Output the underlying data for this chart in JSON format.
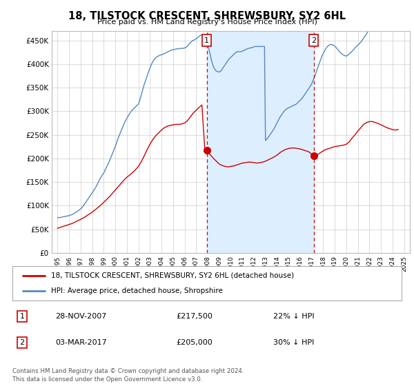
{
  "title": "18, TILSTOCK CRESCENT, SHREWSBURY, SY2 6HL",
  "subtitle": "Price paid vs. HM Land Registry's House Price Index (HPI)",
  "hpi_label": "HPI: Average price, detached house, Shropshire",
  "property_label": "18, TILSTOCK CRESCENT, SHREWSBURY, SY2 6HL (detached house)",
  "footer1": "Contains HM Land Registry data © Crown copyright and database right 2024.",
  "footer2": "This data is licensed under the Open Government Licence v3.0.",
  "transaction1": {
    "num": "1",
    "date": "28-NOV-2007",
    "price": "£217,500",
    "note": "22% ↓ HPI"
  },
  "transaction2": {
    "num": "2",
    "date": "03-MAR-2017",
    "price": "£205,000",
    "note": "30% ↓ HPI"
  },
  "hpi_color": "#5588bb",
  "hpi_fill_color": "#ddeeff",
  "price_color": "#cc0000",
  "marker1_x": 2007.91,
  "marker1_y": 217500,
  "marker2_x": 2017.17,
  "marker2_y": 205000,
  "ylim": [
    0,
    470000
  ],
  "xlim": [
    1994.5,
    2025.5
  ],
  "yticks": [
    0,
    50000,
    100000,
    150000,
    200000,
    250000,
    300000,
    350000,
    400000,
    450000
  ],
  "ytick_labels": [
    "£0",
    "£50K",
    "£100K",
    "£150K",
    "£200K",
    "£250K",
    "£300K",
    "£350K",
    "£400K",
    "£450K"
  ],
  "xticks": [
    1995,
    1996,
    1997,
    1998,
    1999,
    2000,
    2001,
    2002,
    2003,
    2004,
    2005,
    2006,
    2007,
    2008,
    2009,
    2010,
    2011,
    2012,
    2013,
    2014,
    2015,
    2016,
    2017,
    2018,
    2019,
    2020,
    2021,
    2022,
    2023,
    2024,
    2025
  ],
  "hpi_x": [
    1995.0,
    1995.083,
    1995.167,
    1995.25,
    1995.333,
    1995.417,
    1995.5,
    1995.583,
    1995.667,
    1995.75,
    1995.833,
    1995.917,
    1996.0,
    1996.083,
    1996.167,
    1996.25,
    1996.333,
    1996.417,
    1996.5,
    1996.583,
    1996.667,
    1996.75,
    1996.833,
    1996.917,
    1997.0,
    1997.083,
    1997.167,
    1997.25,
    1997.333,
    1997.417,
    1997.5,
    1997.583,
    1997.667,
    1997.75,
    1997.833,
    1997.917,
    1998.0,
    1998.083,
    1998.167,
    1998.25,
    1998.333,
    1998.417,
    1998.5,
    1998.583,
    1998.667,
    1998.75,
    1998.833,
    1998.917,
    1999.0,
    1999.083,
    1999.167,
    1999.25,
    1999.333,
    1999.417,
    1999.5,
    1999.583,
    1999.667,
    1999.75,
    1999.833,
    1999.917,
    2000.0,
    2000.083,
    2000.167,
    2000.25,
    2000.333,
    2000.417,
    2000.5,
    2000.583,
    2000.667,
    2000.75,
    2000.833,
    2000.917,
    2001.0,
    2001.083,
    2001.167,
    2001.25,
    2001.333,
    2001.417,
    2001.5,
    2001.583,
    2001.667,
    2001.75,
    2001.833,
    2001.917,
    2002.0,
    2002.083,
    2002.167,
    2002.25,
    2002.333,
    2002.417,
    2002.5,
    2002.583,
    2002.667,
    2002.75,
    2002.833,
    2002.917,
    2003.0,
    2003.083,
    2003.167,
    2003.25,
    2003.333,
    2003.417,
    2003.5,
    2003.583,
    2003.667,
    2003.75,
    2003.833,
    2003.917,
    2004.0,
    2004.083,
    2004.167,
    2004.25,
    2004.333,
    2004.417,
    2004.5,
    2004.583,
    2004.667,
    2004.75,
    2004.833,
    2004.917,
    2005.0,
    2005.083,
    2005.167,
    2005.25,
    2005.333,
    2005.417,
    2005.5,
    2005.583,
    2005.667,
    2005.75,
    2005.833,
    2005.917,
    2006.0,
    2006.083,
    2006.167,
    2006.25,
    2006.333,
    2006.417,
    2006.5,
    2006.583,
    2006.667,
    2006.75,
    2006.833,
    2006.917,
    2007.0,
    2007.083,
    2007.167,
    2007.25,
    2007.333,
    2007.417,
    2007.5,
    2007.583,
    2007.667,
    2007.75,
    2007.833,
    2007.917,
    2008.0,
    2008.083,
    2008.167,
    2008.25,
    2008.333,
    2008.417,
    2008.5,
    2008.583,
    2008.667,
    2008.75,
    2008.833,
    2008.917,
    2009.0,
    2009.083,
    2009.167,
    2009.25,
    2009.333,
    2009.417,
    2009.5,
    2009.583,
    2009.667,
    2009.75,
    2009.833,
    2009.917,
    2010.0,
    2010.083,
    2010.167,
    2010.25,
    2010.333,
    2010.417,
    2010.5,
    2010.583,
    2010.667,
    2010.75,
    2010.833,
    2010.917,
    2011.0,
    2011.083,
    2011.167,
    2011.25,
    2011.333,
    2011.417,
    2011.5,
    2011.583,
    2011.667,
    2011.75,
    2011.833,
    2011.917,
    2012.0,
    2012.083,
    2012.167,
    2012.25,
    2012.333,
    2012.417,
    2012.5,
    2012.583,
    2012.667,
    2012.75,
    2012.833,
    2012.917,
    2013.0,
    2013.083,
    2013.167,
    2013.25,
    2013.333,
    2013.417,
    2013.5,
    2013.583,
    2013.667,
    2013.75,
    2013.833,
    2013.917,
    2014.0,
    2014.083,
    2014.167,
    2014.25,
    2014.333,
    2014.417,
    2014.5,
    2014.583,
    2014.667,
    2014.75,
    2014.833,
    2014.917,
    2015.0,
    2015.083,
    2015.167,
    2015.25,
    2015.333,
    2015.417,
    2015.5,
    2015.583,
    2015.667,
    2015.75,
    2015.833,
    2015.917,
    2016.0,
    2016.083,
    2016.167,
    2016.25,
    2016.333,
    2016.417,
    2016.5,
    2016.583,
    2016.667,
    2016.75,
    2016.833,
    2016.917,
    2017.0,
    2017.083,
    2017.167,
    2017.25,
    2017.333,
    2017.417,
    2017.5,
    2017.583,
    2017.667,
    2017.75,
    2017.833,
    2017.917,
    2018.0,
    2018.083,
    2018.167,
    2018.25,
    2018.333,
    2018.417,
    2018.5,
    2018.583,
    2018.667,
    2018.75,
    2018.833,
    2018.917,
    2019.0,
    2019.083,
    2019.167,
    2019.25,
    2019.333,
    2019.417,
    2019.5,
    2019.583,
    2019.667,
    2019.75,
    2019.833,
    2019.917,
    2020.0,
    2020.083,
    2020.167,
    2020.25,
    2020.333,
    2020.417,
    2020.5,
    2020.583,
    2020.667,
    2020.75,
    2020.833,
    2020.917,
    2021.0,
    2021.083,
    2021.167,
    2021.25,
    2021.333,
    2021.417,
    2021.5,
    2021.583,
    2021.667,
    2021.75,
    2021.833,
    2021.917,
    2022.0,
    2022.083,
    2022.167,
    2022.25,
    2022.333,
    2022.417,
    2022.5,
    2022.583,
    2022.667,
    2022.75,
    2022.833,
    2022.917,
    2023.0,
    2023.083,
    2023.167,
    2023.25,
    2023.333,
    2023.417,
    2023.5,
    2023.583,
    2023.667,
    2023.75,
    2023.833,
    2023.917,
    2024.0,
    2024.083,
    2024.167,
    2024.25,
    2024.333,
    2024.417,
    2024.5
  ],
  "hpi_y": [
    74000,
    74500,
    75000,
    74800,
    75200,
    75800,
    76200,
    76800,
    77000,
    77500,
    78000,
    78500,
    79000,
    79500,
    80200,
    81000,
    82000,
    83500,
    84500,
    85500,
    87000,
    88500,
    90000,
    91500,
    93000,
    95000,
    97500,
    100000,
    103000,
    106000,
    109000,
    112000,
    115000,
    118000,
    121000,
    124000,
    127000,
    130000,
    133000,
    136500,
    140000,
    144000,
    148000,
    152000,
    156000,
    160000,
    163000,
    166000,
    169000,
    173000,
    177500,
    182000,
    186000,
    190000,
    195000,
    200000,
    205000,
    210000,
    215000,
    220000,
    225000,
    231000,
    237000,
    243000,
    248000,
    253000,
    258000,
    263000,
    268000,
    273000,
    277000,
    281000,
    285000,
    289000,
    292000,
    295000,
    298000,
    301000,
    303000,
    305000,
    307000,
    309000,
    311000,
    313000,
    315000,
    320000,
    327000,
    334000,
    342000,
    349000,
    356000,
    362000,
    368000,
    374000,
    380000,
    386000,
    391000,
    396000,
    401000,
    405000,
    408000,
    411000,
    413000,
    415000,
    416000,
    417000,
    418000,
    419000,
    419500,
    420000,
    421000,
    422000,
    423000,
    424000,
    425000,
    426000,
    427000,
    428000,
    429000,
    430000,
    430000,
    430500,
    431000,
    431500,
    432000,
    432000,
    432000,
    432500,
    433000,
    433000,
    433000,
    433000,
    434000,
    435000,
    436000,
    438000,
    440000,
    443000,
    445000,
    447000,
    449000,
    450000,
    451000,
    452000,
    453000,
    455000,
    457000,
    458000,
    460000,
    461000,
    461000,
    460000,
    458000,
    455000,
    452000,
    448000,
    442000,
    434000,
    425000,
    416000,
    407000,
    400000,
    394000,
    390000,
    387000,
    385000,
    384000,
    383000,
    383000,
    384000,
    386000,
    389000,
    392000,
    395000,
    398000,
    401000,
    404000,
    407000,
    410000,
    412000,
    414000,
    416000,
    418000,
    420000,
    422000,
    424000,
    425000,
    426000,
    426000,
    426000,
    426000,
    426000,
    427000,
    428000,
    429000,
    430000,
    431000,
    432000,
    433000,
    433000,
    434000,
    434000,
    435000,
    435000,
    436000,
    437000,
    437000,
    437000,
    437000,
    437000,
    437000,
    437000,
    437000,
    437000,
    437000,
    437000,
    238000,
    240000,
    242000,
    245000,
    248000,
    251000,
    254000,
    257000,
    260000,
    263000,
    267000,
    271000,
    275000,
    279000,
    283000,
    287000,
    290000,
    293000,
    296000,
    299000,
    301000,
    303000,
    305000,
    306000,
    307000,
    308000,
    309000,
    310000,
    311000,
    312000,
    313000,
    314000,
    315000,
    317000,
    319000,
    321000,
    323000,
    325000,
    327000,
    330000,
    333000,
    336000,
    339000,
    342000,
    345000,
    348000,
    351000,
    354000,
    358000,
    363000,
    368000,
    373000,
    378000,
    384000,
    390000,
    396000,
    402000,
    407000,
    413000,
    418000,
    422000,
    426000,
    430000,
    433000,
    436000,
    438000,
    440000,
    441000,
    441000,
    441000,
    440000,
    439000,
    438000,
    436000,
    433000,
    431000,
    428000,
    426000,
    424000,
    422000,
    420000,
    419000,
    418000,
    417000,
    417000,
    418000,
    419000,
    421000,
    423000,
    425000,
    427000,
    429000,
    431000,
    434000,
    436000,
    438000,
    440000,
    442000,
    444000,
    446000,
    449000,
    452000,
    455000,
    458000,
    461000,
    464000,
    467000
  ],
  "price_x": [
    1995.0,
    1995.25,
    1995.5,
    1995.75,
    1996.0,
    1996.25,
    1996.5,
    1996.75,
    1997.0,
    1997.25,
    1997.5,
    1997.75,
    1998.0,
    1998.25,
    1998.5,
    1998.75,
    1999.0,
    1999.25,
    1999.5,
    1999.75,
    2000.0,
    2000.25,
    2000.5,
    2000.75,
    2001.0,
    2001.25,
    2001.5,
    2001.75,
    2002.0,
    2002.25,
    2002.5,
    2002.75,
    2003.0,
    2003.25,
    2003.5,
    2003.75,
    2004.0,
    2004.25,
    2004.5,
    2004.75,
    2005.0,
    2005.25,
    2005.5,
    2005.75,
    2006.0,
    2006.25,
    2006.5,
    2006.75,
    2007.0,
    2007.25,
    2007.5,
    2007.75,
    2007.917,
    2008.0,
    2008.25,
    2008.5,
    2008.75,
    2009.0,
    2009.25,
    2009.5,
    2009.75,
    2010.0,
    2010.25,
    2010.5,
    2010.75,
    2011.0,
    2011.25,
    2011.5,
    2011.75,
    2012.0,
    2012.25,
    2012.5,
    2012.75,
    2013.0,
    2013.25,
    2013.5,
    2013.75,
    2014.0,
    2014.25,
    2014.5,
    2014.75,
    2015.0,
    2015.25,
    2015.5,
    2015.75,
    2016.0,
    2016.25,
    2016.5,
    2016.75,
    2017.167,
    2017.5,
    2017.75,
    2018.0,
    2018.25,
    2018.5,
    2018.75,
    2019.0,
    2019.25,
    2019.5,
    2019.75,
    2020.0,
    2020.25,
    2020.5,
    2020.75,
    2021.0,
    2021.25,
    2021.5,
    2021.75,
    2022.0,
    2022.25,
    2022.5,
    2022.75,
    2023.0,
    2023.25,
    2023.5,
    2023.75,
    2024.0,
    2024.25,
    2024.5
  ],
  "price_y": [
    52000,
    54000,
    56000,
    58000,
    60000,
    62000,
    65000,
    68000,
    71000,
    74000,
    78000,
    82000,
    86000,
    91000,
    96000,
    101000,
    107000,
    113000,
    119000,
    126000,
    133000,
    140000,
    147000,
    154000,
    160000,
    165000,
    170000,
    176000,
    183000,
    193000,
    205000,
    218000,
    230000,
    240000,
    248000,
    254000,
    260000,
    265000,
    268000,
    270000,
    271000,
    272000,
    272000,
    273000,
    275000,
    280000,
    288000,
    296000,
    302000,
    308000,
    313000,
    218000,
    217500,
    213000,
    207000,
    200000,
    194000,
    188000,
    185000,
    183000,
    182000,
    183000,
    184000,
    186000,
    188000,
    190000,
    191000,
    192000,
    192000,
    191000,
    190000,
    191000,
    192000,
    194000,
    197000,
    200000,
    203000,
    207000,
    212000,
    216000,
    219000,
    221000,
    222000,
    222000,
    221000,
    220000,
    218000,
    216000,
    214000,
    205000,
    208000,
    212000,
    216000,
    219000,
    221000,
    223000,
    225000,
    226000,
    227000,
    228000,
    230000,
    235000,
    243000,
    250000,
    258000,
    265000,
    272000,
    276000,
    278000,
    278000,
    276000,
    274000,
    271000,
    268000,
    265000,
    263000,
    261000,
    260000,
    261000
  ]
}
